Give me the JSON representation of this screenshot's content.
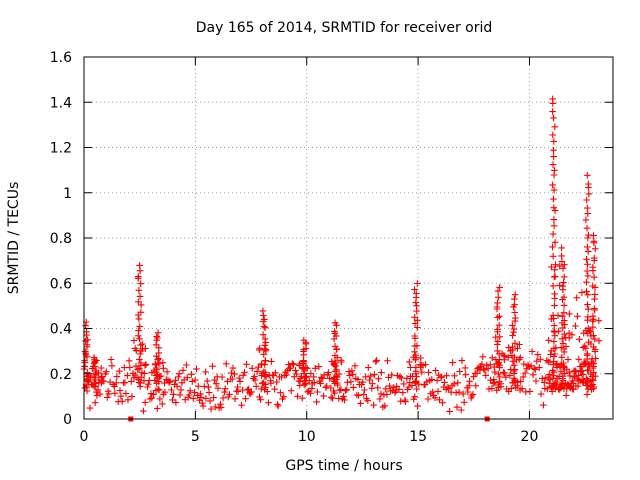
{
  "chart_data": {
    "type": "scatter",
    "title": "Day 165 of 2014, SRMTID for receiver orid",
    "xlabel": "GPS time / hours",
    "ylabel": "SRMTID / TECUs",
    "xlim": [
      0,
      23.75
    ],
    "ylim": [
      0,
      1.6
    ],
    "xticks": [
      "0",
      "5",
      "10",
      "15",
      "20"
    ],
    "xtick_values": [
      0,
      5,
      10,
      15,
      20
    ],
    "yticks": [
      "0",
      "0.2",
      "0.4",
      "0.6",
      "0.8",
      "1",
      "1.2",
      "1.4",
      "1.6"
    ],
    "ytick_values": [
      0,
      0.2,
      0.4,
      0.6,
      0.8,
      1.0,
      1.2,
      1.4,
      1.6
    ],
    "grid": true,
    "marker": "plus",
    "series": [
      {
        "name": "SRMTID",
        "color": "#ff0000",
        "baseline": 0.15,
        "spikes": [
          {
            "x": 0.1,
            "peak": 0.42
          },
          {
            "x": 0.5,
            "peak": 0.28
          },
          {
            "x": 2.5,
            "peak": 0.68
          },
          {
            "x": 3.3,
            "peak": 0.38
          },
          {
            "x": 8.1,
            "peak": 0.48
          },
          {
            "x": 9.9,
            "peak": 0.35
          },
          {
            "x": 11.3,
            "peak": 0.42
          },
          {
            "x": 14.9,
            "peak": 0.6
          },
          {
            "x": 18.6,
            "peak": 0.58
          },
          {
            "x": 19.3,
            "peak": 0.55
          },
          {
            "x": 21.1,
            "peak": 1.42
          },
          {
            "x": 21.5,
            "peak": 0.75
          },
          {
            "x": 22.6,
            "peak": 1.07
          },
          {
            "x": 22.9,
            "peak": 0.82
          }
        ],
        "gaps_at_zero": [
          2.1,
          18.1
        ]
      }
    ]
  }
}
